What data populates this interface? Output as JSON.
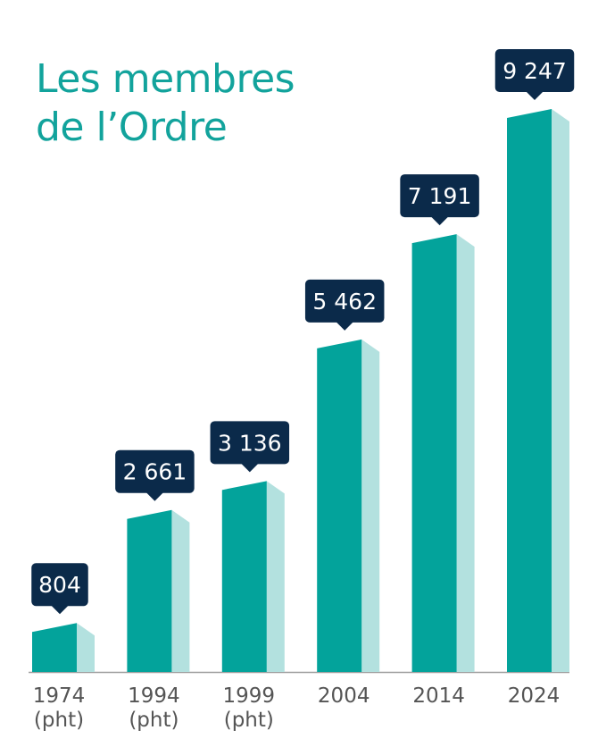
{
  "title": {
    "line1": "Les membres",
    "line2": "de l’Ordre"
  },
  "chart_data": {
    "type": "bar",
    "title": "Les membres de l’Ordre",
    "categories": [
      "1974",
      "1994",
      "1999",
      "2004",
      "2014",
      "2024"
    ],
    "category_notes": [
      "(pht)",
      "(pht)",
      "(pht)",
      "",
      "",
      ""
    ],
    "values": [
      804,
      2661,
      3136,
      5462,
      7191,
      9247
    ],
    "value_labels": [
      "804",
      "2 661",
      "3 136",
      "5 462",
      "7 191",
      "9 247"
    ],
    "xlabel": "",
    "ylabel": "",
    "ylim": [
      0,
      9247
    ],
    "grid": false,
    "legend": "none",
    "colors": {
      "title": "#12a39c",
      "bar_front": "#03a39b",
      "bar_side": "#b3e1df",
      "label_bg": "#0b2a4a",
      "label_text": "#ffffff",
      "axis": "#9e9e9e",
      "tick_text": "#555555"
    }
  }
}
